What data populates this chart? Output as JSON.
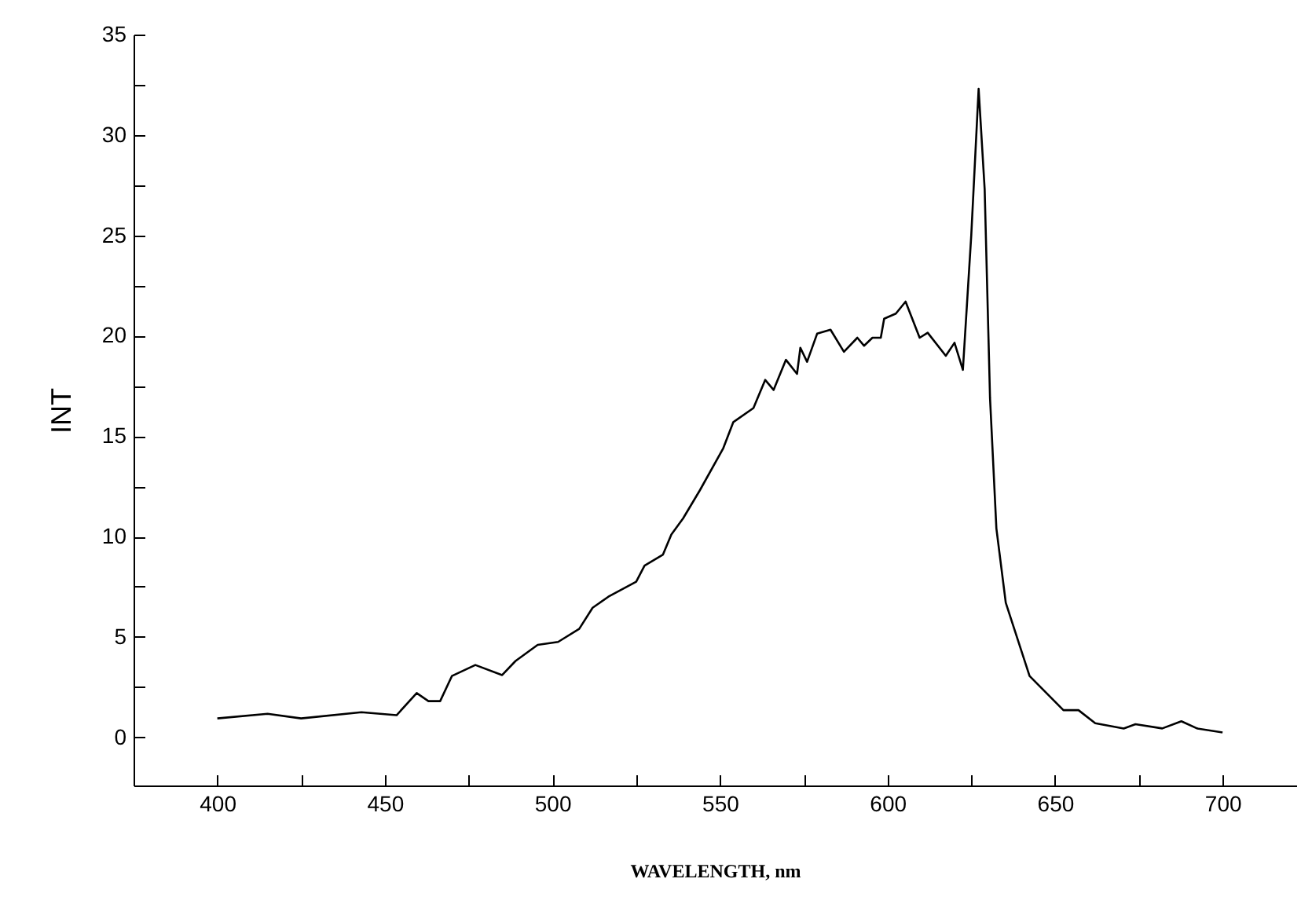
{
  "chart_data": {
    "type": "line",
    "xlabel": "WAVELENGTH, nm",
    "ylabel": "INT",
    "x": [
      400,
      415,
      425,
      443,
      453.5,
      459.5,
      463,
      466.5,
      470,
      477,
      485,
      489,
      495.6,
      501.7,
      508,
      512,
      516.7,
      525,
      527.5,
      533,
      535.5,
      539,
      544,
      551,
      554,
      560,
      563.5,
      566,
      569.7,
      573,
      574,
      576,
      579,
      583,
      587,
      591,
      593,
      595.5,
      598,
      599,
      602.5,
      605.4,
      609.6,
      612,
      617.4,
      620,
      622.5,
      625,
      627.2,
      629,
      630.6,
      632.5,
      635.3,
      642.4,
      652.5,
      657,
      662,
      670.5,
      674,
      682,
      687.7,
      692.4,
      700
    ],
    "series": [
      {
        "color": "#000000",
        "values": [
          0.94,
          1.17,
          0.94,
          1.25,
          1.1,
          2.2,
          1.8,
          1.8,
          3.05,
          3.6,
          3.1,
          3.8,
          4.6,
          4.75,
          5.4,
          6.45,
          7.0,
          7.75,
          8.55,
          9.1,
          10.1,
          10.9,
          12.3,
          14.4,
          15.7,
          16.4,
          17.8,
          17.3,
          18.8,
          18.1,
          19.4,
          18.7,
          20.1,
          20.3,
          19.2,
          19.9,
          19.5,
          19.9,
          19.9,
          20.85,
          21.1,
          21.7,
          19.9,
          20.15,
          19.0,
          19.65,
          18.3,
          25,
          32.3,
          27.3,
          16.9,
          10.4,
          6.7,
          3.05,
          1.35,
          1.35,
          0.7,
          0.44,
          0.65,
          0.44,
          0.8,
          0.44,
          0.24
        ]
      }
    ],
    "xlim": [
      375,
      722
    ],
    "ylim": [
      -2.4,
      35
    ],
    "xticks": [
      400,
      {
        "value": 425,
        "label": null
      },
      450,
      {
        "value": 475,
        "label": null
      },
      500,
      {
        "value": 525,
        "label": null
      },
      550,
      {
        "value": 575,
        "label": null
      },
      600,
      {
        "value": 625,
        "label": null
      },
      650,
      {
        "value": 675,
        "label": null
      },
      700
    ],
    "yticks": [
      0,
      {
        "value": 2.5,
        "label": null
      },
      5,
      {
        "value": 7.5,
        "label": null
      },
      10,
      {
        "value": 12.5,
        "label": null
      },
      15,
      {
        "value": 17.5,
        "label": null
      },
      20,
      {
        "value": 22.5,
        "label": null
      },
      25,
      {
        "value": 27.5,
        "label": null
      },
      30,
      {
        "value": 32.5,
        "label": null
      },
      35
    ],
    "grid": false,
    "legend": false,
    "marker": "none",
    "line_style": "solid"
  }
}
